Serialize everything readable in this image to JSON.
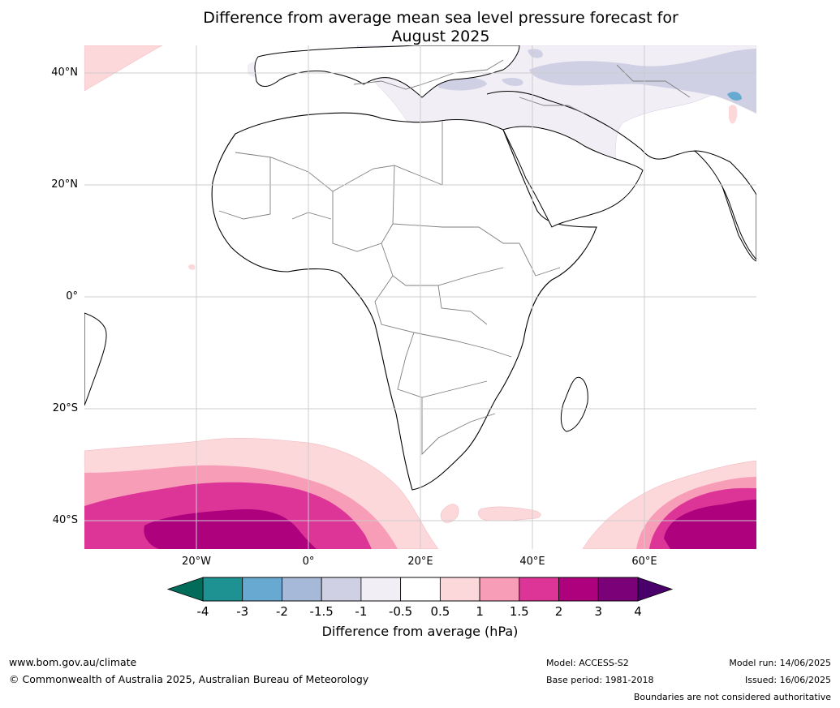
{
  "title_line1": "Difference from average mean sea level pressure forecast for",
  "title_line2": "August 2025",
  "map": {
    "region": "Africa, Europe & Middle East",
    "lat_labels": [
      "40°N",
      "20°N",
      "0°",
      "20°S",
      "40°S"
    ],
    "lon_labels": [
      "20°W",
      "0°",
      "20°E",
      "40°E",
      "60°E"
    ],
    "land_color": "#ffffff",
    "border_color": "#7f7f7f",
    "coast_color": "#000000",
    "grid_color": "#cccccc"
  },
  "colorbar": {
    "tick_labels": [
      "-4",
      "-3",
      "-2",
      "-1.5",
      "-1",
      "-0.5",
      "0.5",
      "1",
      "1.5",
      "2",
      "3",
      "4"
    ],
    "colors": [
      "#1e9293",
      "#68a9d2",
      "#a6b9d8",
      "#cfd0e4",
      "#f2eef6",
      "#ffffff",
      "#fdd8db",
      "#f79db8",
      "#dd3597",
      "#ae017e",
      "#7a0177"
    ],
    "under_color": "#016c59",
    "over_color": "#49006a",
    "label": "Difference from average (hPa)"
  },
  "footer": {
    "website": "www.bom.gov.au/climate",
    "copyright": "© Commonwealth of Australia 2025, Australian Bureau of Meteorology",
    "model": "Model: ACCESS-S2",
    "base_period": "Base period: 1981-2018",
    "model_run": "Model run: 14/06/2025",
    "issued": "Issued: 16/06/2025",
    "disclaimer": "Boundaries are not considered authoritative"
  }
}
